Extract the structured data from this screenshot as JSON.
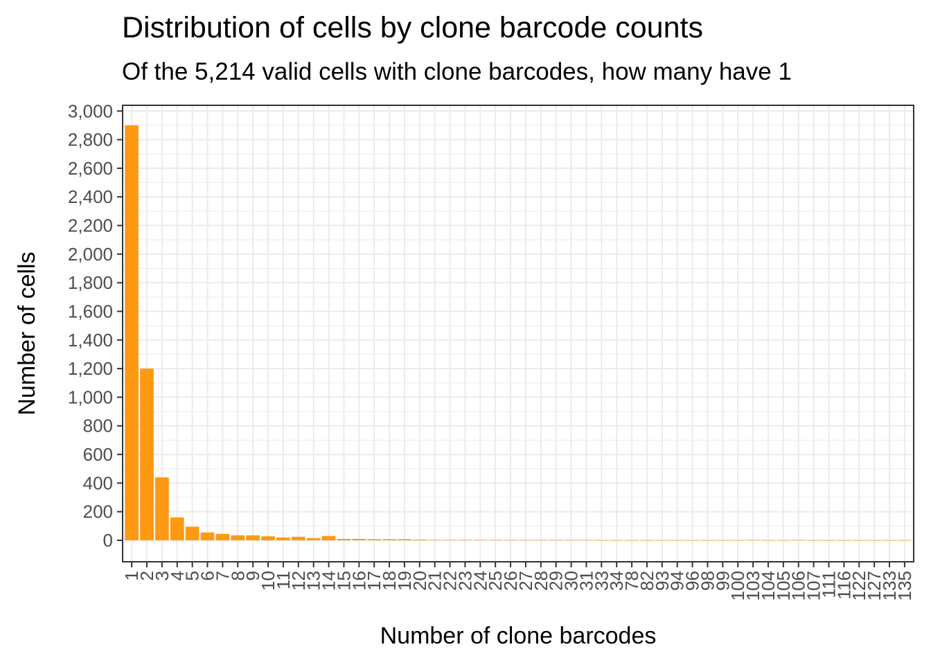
{
  "chart_data": {
    "type": "bar",
    "title": "Distribution of cells by clone barcode counts",
    "subtitle": "Of the 5,214 valid cells with clone barcodes, how many have 1",
    "xlabel": "Number of clone barcodes",
    "ylabel": "Number of cells",
    "ylim": [
      -150,
      3040
    ],
    "y_ticks": [
      0,
      200,
      400,
      600,
      800,
      1000,
      1200,
      1400,
      1600,
      1800,
      2000,
      2200,
      2400,
      2600,
      2800,
      3000
    ],
    "y_tick_labels": [
      "0",
      "200",
      "400",
      "600",
      "800",
      "1,000",
      "1,200",
      "1,400",
      "1,600",
      "1,800",
      "2,000",
      "2,200",
      "2,400",
      "2,600",
      "2,800",
      "3,000"
    ],
    "categories": [
      "1",
      "2",
      "3",
      "4",
      "5",
      "6",
      "7",
      "8",
      "9",
      "10",
      "11",
      "12",
      "13",
      "14",
      "15",
      "16",
      "17",
      "18",
      "19",
      "20",
      "21",
      "22",
      "23",
      "24",
      "25",
      "26",
      "27",
      "28",
      "29",
      "30",
      "31",
      "33",
      "34",
      "78",
      "82",
      "93",
      "94",
      "96",
      "98",
      "99",
      "100",
      "103",
      "104",
      "105",
      "106",
      "107",
      "111",
      "116",
      "122",
      "127",
      "133",
      "135"
    ],
    "values": [
      2900,
      1200,
      440,
      160,
      95,
      55,
      45,
      35,
      35,
      28,
      20,
      25,
      15,
      30,
      10,
      10,
      8,
      8,
      8,
      5,
      3,
      3,
      3,
      3,
      2,
      2,
      2,
      2,
      2,
      2,
      2,
      1,
      1,
      1,
      1,
      1,
      1,
      1,
      1,
      1,
      1,
      2,
      1,
      1,
      2,
      1,
      1,
      1,
      1,
      1,
      1,
      1
    ],
    "bar_color": "#FF9912",
    "grid": true,
    "grid_color": "#EBEBEB",
    "panel_border_color": "#333333"
  }
}
